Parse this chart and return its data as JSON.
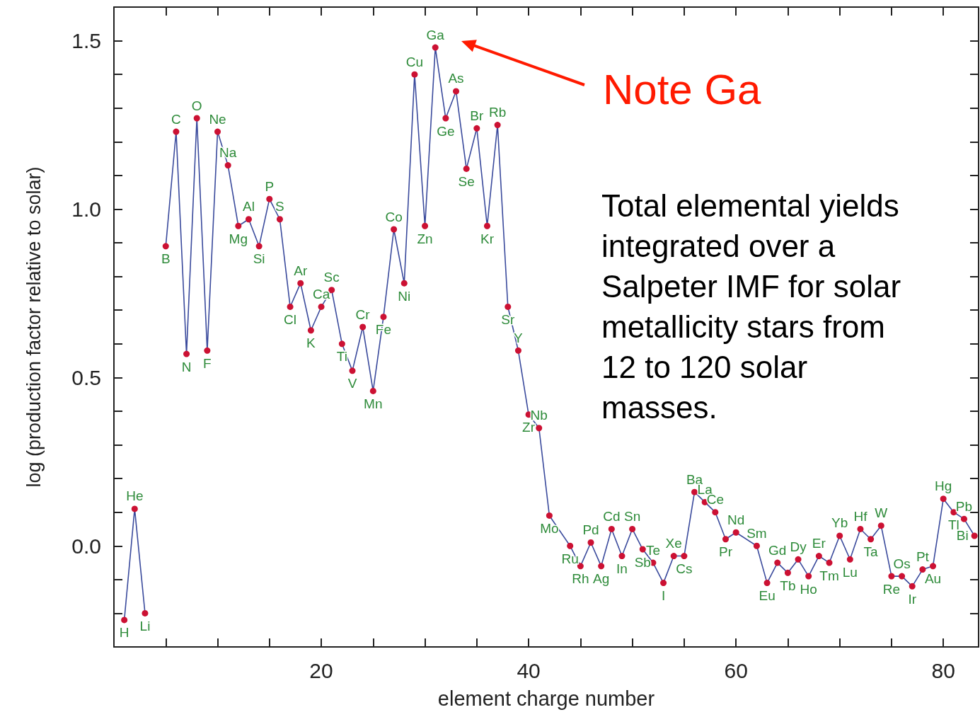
{
  "chart_data": {
    "type": "line",
    "xlabel": "element charge number",
    "ylabel": "log (production factor relative to solar)",
    "xlim": [
      0,
      83.4
    ],
    "ylim": [
      -0.3,
      1.6
    ],
    "xticks": [
      {
        "value": 5,
        "label": null
      },
      {
        "value": 10,
        "label": null
      },
      {
        "value": 15,
        "label": null
      },
      {
        "value": 20,
        "label": "20"
      },
      {
        "value": 25,
        "label": null
      },
      {
        "value": 30,
        "label": null
      },
      {
        "value": 35,
        "label": null
      },
      {
        "value": 40,
        "label": "40"
      },
      {
        "value": 45,
        "label": null
      },
      {
        "value": 50,
        "label": null
      },
      {
        "value": 55,
        "label": null
      },
      {
        "value": 60,
        "label": "60"
      },
      {
        "value": 65,
        "label": null
      },
      {
        "value": 70,
        "label": null
      },
      {
        "value": 75,
        "label": null
      },
      {
        "value": 80,
        "label": "80"
      }
    ],
    "yticks": [
      {
        "value": -0.2,
        "label": null
      },
      {
        "value": -0.1,
        "label": null
      },
      {
        "value": 0,
        "label": "0.0"
      },
      {
        "value": 0.1,
        "label": null
      },
      {
        "value": 0.2,
        "label": null
      },
      {
        "value": 0.3,
        "label": null
      },
      {
        "value": 0.4,
        "label": null
      },
      {
        "value": 0.5,
        "label": "0.5"
      },
      {
        "value": 0.6,
        "label": null
      },
      {
        "value": 0.7,
        "label": null
      },
      {
        "value": 0.8,
        "label": null
      },
      {
        "value": 0.9,
        "label": null
      },
      {
        "value": 1.0,
        "label": "1.0"
      },
      {
        "value": 1.1,
        "label": null
      },
      {
        "value": 1.2,
        "label": null
      },
      {
        "value": 1.3,
        "label": null
      },
      {
        "value": 1.4,
        "label": null
      },
      {
        "value": 1.5,
        "label": "1.5"
      }
    ],
    "grid": false,
    "marker": "circle",
    "line_style": "solid",
    "series": [
      {
        "color": "#3a4a9c",
        "x": [
          1,
          2,
          3,
          4,
          5,
          6,
          7,
          8,
          9,
          10,
          11,
          12,
          13,
          14,
          15,
          16,
          17,
          18,
          19,
          20,
          21,
          22,
          23,
          24,
          25,
          26,
          27,
          28,
          29,
          30,
          31,
          32,
          33,
          34,
          35,
          36,
          37,
          38,
          39,
          40,
          41,
          42,
          44,
          45,
          46,
          47,
          48,
          49,
          50,
          51,
          52,
          53,
          54,
          55,
          56,
          57,
          58,
          59,
          60,
          62,
          63,
          64,
          65,
          66,
          67,
          68,
          69,
          70,
          71,
          72,
          73,
          74,
          75,
          76,
          77,
          78,
          79,
          80,
          81,
          82,
          83
        ],
        "values": [
          -0.22,
          0.11,
          -0.2,
          null,
          0.89,
          1.23,
          0.57,
          1.27,
          0.58,
          1.23,
          1.13,
          0.95,
          0.97,
          0.89,
          1.03,
          0.97,
          0.71,
          0.78,
          0.64,
          0.71,
          0.76,
          0.6,
          0.52,
          0.65,
          0.46,
          0.68,
          0.94,
          0.78,
          1.4,
          0.95,
          1.48,
          1.27,
          1.35,
          1.12,
          1.24,
          0.95,
          1.25,
          0.71,
          0.58,
          0.39,
          0.35,
          0.09,
          0.0,
          -0.06,
          0.01,
          -0.06,
          0.05,
          -0.03,
          0.05,
          -0.01,
          -0.05,
          -0.11,
          -0.03,
          -0.03,
          0.16,
          0.13,
          0.1,
          0.02,
          0.04,
          0.0,
          -0.11,
          -0.05,
          -0.08,
          -0.04,
          -0.09,
          -0.03,
          -0.05,
          0.03,
          -0.04,
          0.05,
          0.02,
          0.06,
          -0.09,
          -0.09,
          -0.12,
          -0.07,
          -0.06,
          0.14,
          0.1,
          0.08,
          0.03
        ],
        "value_labels": [
          "H",
          "He",
          "Li",
          null,
          "B",
          "C",
          "N",
          "O",
          "F",
          "Ne",
          "Na",
          "Mg",
          "Al",
          "Si",
          "P",
          "S",
          "Cl",
          "Ar",
          "K",
          "Ca",
          "Sc",
          "Ti",
          "V",
          "Cr",
          "Mn",
          "Fe",
          "Co",
          "Ni",
          "Cu",
          "Zn",
          "Ga",
          "Ge",
          "As",
          "Se",
          "Br",
          "Kr",
          "Rb",
          "Sr",
          "Y",
          "Zr",
          "Nb",
          "Mo",
          "Ru",
          "Rh",
          "Pd",
          "Ag",
          "Cd",
          "In",
          "Sn",
          "Sb",
          "Te",
          "I",
          "Xe",
          "Cs",
          "Ba",
          "La",
          "Ce",
          "Pr",
          "Nd",
          "Sm",
          "Eu",
          "Gd",
          "Tb",
          "Dy",
          "Ho",
          "Er",
          "Tm",
          "Yb",
          "Lu",
          "Hf",
          "Ta",
          "W",
          "Re",
          "Os",
          "Ir",
          "Pt",
          "Au",
          "Hg",
          "Tl",
          "Pb",
          "Bi"
        ]
      }
    ],
    "annotations": [
      "Note Ga",
      "Total elemental yields\nintegrated over a\nSalpeter IMF for solar\nmetallicity stars from\n12 to 120 solar\nmasses."
    ]
  }
}
